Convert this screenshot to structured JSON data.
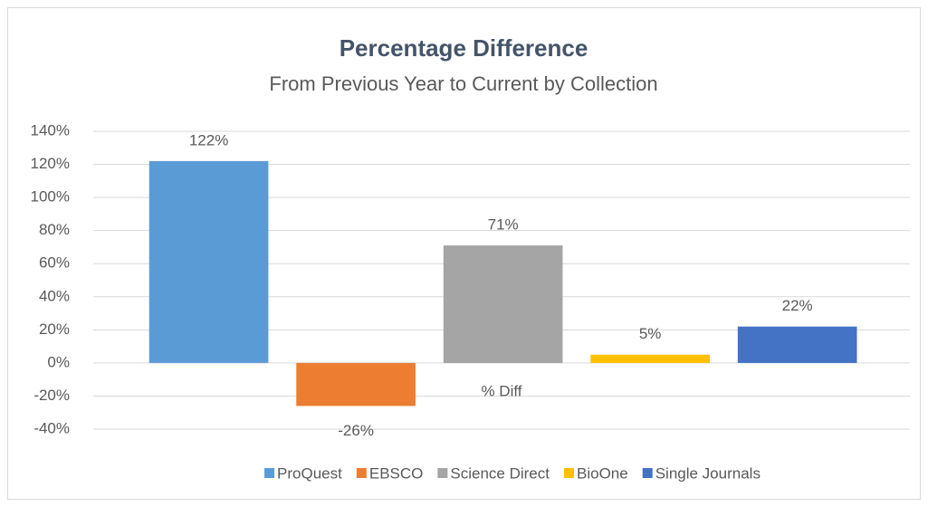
{
  "chart_data": {
    "type": "bar",
    "title": "Percentage Difference",
    "subtitle": "From Previous Year to Current by Collection",
    "categories": [
      "% Diff"
    ],
    "series": [
      {
        "name": "ProQuest",
        "color": "#5b9bd5",
        "values": [
          122
        ],
        "value_labels": [
          "122%"
        ]
      },
      {
        "name": "EBSCO",
        "color": "#ed7d31",
        "values": [
          -26
        ],
        "value_labels": [
          "-26%"
        ]
      },
      {
        "name": "Science Direct",
        "color": "#a5a5a5",
        "values": [
          71
        ],
        "value_labels": [
          "71%"
        ]
      },
      {
        "name": "BioOne",
        "color": "#ffc000",
        "values": [
          5
        ],
        "value_labels": [
          "5%"
        ]
      },
      {
        "name": "Single Journals",
        "color": "#4472c4",
        "values": [
          22
        ],
        "value_labels": [
          "22%"
        ]
      }
    ],
    "ylim": [
      -40,
      140
    ],
    "yticks": [
      {
        "value": -40,
        "label": "-40%"
      },
      {
        "value": -20,
        "label": "-20%"
      },
      {
        "value": 0,
        "label": "0%"
      },
      {
        "value": 20,
        "label": "20%"
      },
      {
        "value": 40,
        "label": "40%"
      },
      {
        "value": 60,
        "label": "60%"
      },
      {
        "value": 80,
        "label": "80%"
      },
      {
        "value": 100,
        "label": "100%"
      },
      {
        "value": 120,
        "label": "120%"
      },
      {
        "value": 140,
        "label": "140%"
      }
    ],
    "grid": true,
    "legend": "bottom"
  }
}
